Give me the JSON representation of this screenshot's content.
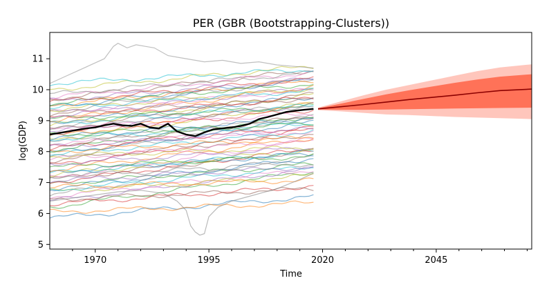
{
  "chart_data": {
    "type": "line",
    "title": "PER (GBR (Bootstrapping-Clusters))",
    "xlabel": "Time",
    "ylabel": "log(GDP)",
    "xlim": [
      1960,
      2066
    ],
    "ylim": [
      4.85,
      11.85
    ],
    "xticks": [
      1970,
      1995,
      2020,
      2045
    ],
    "yticks": [
      5,
      6,
      7,
      8,
      9,
      10,
      11
    ],
    "grid": false,
    "legend": "none",
    "colors": {
      "highlight": "#000000",
      "forecast_median": "#8b0000",
      "band_inner": "#ff6347",
      "band_outer": "#ffa090",
      "history_palette": [
        "#1f77b4",
        "#ff7f0e",
        "#2ca02c",
        "#d62728",
        "#9467bd",
        "#8c564b",
        "#e377c2",
        "#7f7f7f",
        "#bcbd22",
        "#17becf"
      ]
    },
    "history_series_count": 70,
    "history_levels_1960": [
      5.85,
      6.05,
      6.2,
      6.3,
      6.4,
      6.45,
      6.55,
      6.6,
      6.7,
      6.75,
      6.8,
      6.85,
      6.95,
      7.0,
      7.05,
      7.1,
      7.15,
      7.2,
      7.25,
      7.3,
      7.35,
      7.4,
      7.5,
      7.55,
      7.6,
      7.7,
      7.75,
      7.8,
      7.85,
      7.9,
      7.95,
      8.0,
      8.05,
      8.1,
      8.15,
      8.2,
      8.25,
      8.3,
      8.35,
      8.4,
      8.45,
      8.5,
      8.55,
      8.6,
      8.65,
      8.7,
      8.75,
      8.8,
      8.85,
      8.9,
      8.95,
      9.0,
      9.05,
      9.1,
      9.15,
      9.2,
      9.25,
      9.3,
      9.35,
      9.4,
      9.45,
      9.5,
      9.55,
      9.6,
      9.65,
      9.7,
      9.75,
      9.85,
      10.0,
      10.2
    ],
    "history_growth": [
      0.012,
      0.005,
      0.02,
      0.01,
      0.018,
      0.006,
      0.015,
      0.022,
      0.009,
      0.013,
      0.017,
      0.004,
      0.011,
      0.019,
      0.008,
      0.016,
      0.021,
      0.007,
      0.014,
      0.012,
      0.01,
      0.018,
      0.006,
      0.02,
      0.009,
      0.015,
      0.011,
      0.023,
      0.005,
      0.013,
      0.017,
      0.008,
      0.019,
      0.012,
      0.01,
      0.016,
      0.007,
      0.014,
      0.021,
      0.009,
      0.011,
      0.018,
      0.006,
      0.013,
      0.015,
      0.02,
      0.008,
      0.012,
      0.017,
      0.01,
      0.014,
      0.019,
      0.007,
      0.011,
      0.016,
      0.009,
      0.013,
      0.018,
      0.012,
      0.01,
      0.015,
      0.014,
      0.011,
      0.013,
      0.012,
      0.016,
      0.014,
      0.012,
      0.013,
      0.008
    ],
    "peaked_series": {
      "x": [
        1960,
        1963,
        1966,
        1969,
        1972,
        1974,
        1975,
        1977,
        1979,
        1981,
        1983,
        1986,
        1990,
        1994,
        1998,
        2002,
        2006,
        2010,
        2014,
        2018
      ],
      "y": [
        10.2,
        10.4,
        10.6,
        10.8,
        11.0,
        11.4,
        11.5,
        11.35,
        11.45,
        11.4,
        11.35,
        11.1,
        11.0,
        10.9,
        10.95,
        10.85,
        10.9,
        10.8,
        10.75,
        10.7
      ]
    },
    "dip_series": {
      "x": [
        1960,
        1965,
        1970,
        1975,
        1980,
        1985,
        1988,
        1990,
        1991,
        1992,
        1993,
        1994,
        1995,
        1997,
        2000,
        2005,
        2010,
        2015,
        2018
      ],
      "y": [
        6.4,
        6.5,
        6.6,
        6.7,
        6.75,
        6.65,
        6.4,
        6.1,
        5.6,
        5.4,
        5.3,
        5.35,
        5.9,
        6.2,
        6.4,
        6.6,
        6.8,
        7.1,
        7.3
      ]
    },
    "highlight_series": {
      "name": "PER",
      "x": [
        1960,
        1962,
        1964,
        1966,
        1968,
        1970,
        1972,
        1974,
        1976,
        1978,
        1980,
        1982,
        1984,
        1986,
        1988,
        1990,
        1992,
        1994,
        1996,
        1998,
        2000,
        2002,
        2004,
        2006,
        2008,
        2010,
        2012,
        2014,
        2016,
        2018
      ],
      "y": [
        8.55,
        8.6,
        8.65,
        8.7,
        8.75,
        8.78,
        8.85,
        8.9,
        8.85,
        8.83,
        8.9,
        8.78,
        8.75,
        8.9,
        8.65,
        8.55,
        8.5,
        8.62,
        8.72,
        8.75,
        8.78,
        8.83,
        8.9,
        9.05,
        9.12,
        9.2,
        9.28,
        9.32,
        9.35,
        9.38
      ]
    },
    "forecast": {
      "x": [
        2019,
        2024,
        2029,
        2034,
        2039,
        2044,
        2049,
        2054,
        2059,
        2066
      ],
      "median": [
        9.38,
        9.45,
        9.52,
        9.6,
        9.68,
        9.75,
        9.82,
        9.9,
        9.97,
        10.02
      ],
      "inner_low": [
        9.36,
        9.35,
        9.35,
        9.36,
        9.37,
        9.38,
        9.39,
        9.4,
        9.41,
        9.42
      ],
      "inner_high": [
        9.4,
        9.55,
        9.7,
        9.85,
        9.98,
        10.1,
        10.22,
        10.33,
        10.42,
        10.5
      ],
      "outer_low": [
        9.34,
        9.3,
        9.25,
        9.2,
        9.18,
        9.15,
        9.12,
        9.1,
        9.08,
        9.05
      ],
      "outer_high": [
        9.42,
        9.62,
        9.82,
        10.0,
        10.15,
        10.3,
        10.45,
        10.6,
        10.72,
        10.82
      ]
    }
  }
}
